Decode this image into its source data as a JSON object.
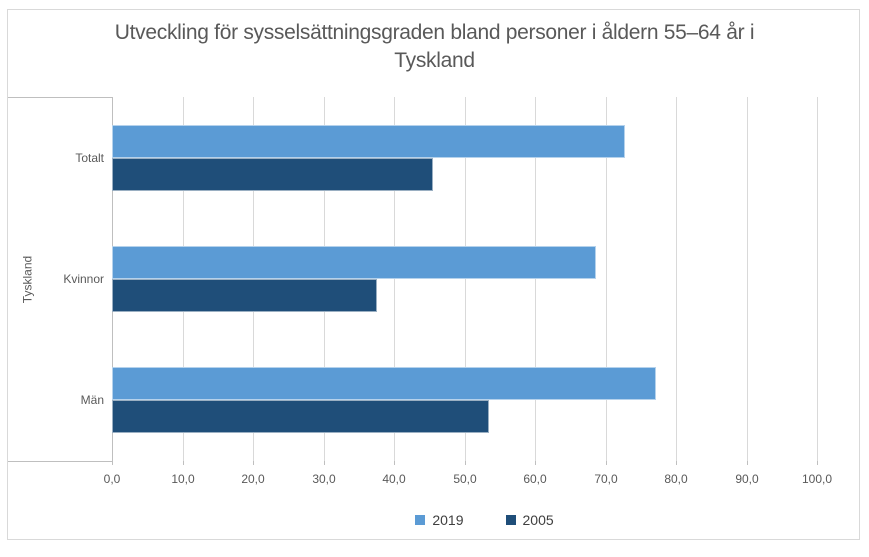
{
  "chart_data": {
    "type": "bar",
    "orientation": "horizontal",
    "title": "Utveckling för sysselsättningsgraden bland personer i åldern 55–64 år i Tyskland",
    "title_lines": [
      "Utveckling för sysselsättningsgraden bland personer i åldern 55–64 år i",
      "Tyskland"
    ],
    "group_label": "Tyskland",
    "categories": [
      "Totalt",
      "Kvinnor",
      "Män"
    ],
    "series": [
      {
        "name": "2019",
        "color": "#5B9BD5",
        "values": [
          72.7,
          68.7,
          77.1
        ]
      },
      {
        "name": "2005",
        "color": "#1F4E79",
        "values": [
          45.5,
          37.6,
          53.5
        ]
      }
    ],
    "xlabel": "",
    "ylabel": "Tyskland",
    "xlim": [
      0,
      100
    ],
    "x_tick_step": 10,
    "x_tick_labels": [
      "0,0",
      "10,0",
      "20,0",
      "30,0",
      "40,0",
      "50,0",
      "60,0",
      "70,0",
      "80,0",
      "90,0",
      "100,0"
    ],
    "grid": true,
    "legend_position": "bottom"
  },
  "colors": {
    "background": "#FFFFFF",
    "chart_border": "#D9D9D9",
    "gridline": "#D9D9D9",
    "axis_line": "#BFBFBF",
    "title_text": "#595959",
    "axis_text": "#595959",
    "legend_text": "#3F3F3F"
  }
}
